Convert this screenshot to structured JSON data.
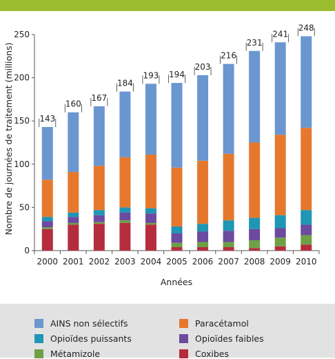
{
  "chart_data": {
    "type": "bar",
    "stacked": true,
    "categories": [
      "2000",
      "2001",
      "2002",
      "2003",
      "2004",
      "2005",
      "2006",
      "2007",
      "2008",
      "2009",
      "2010"
    ],
    "totals": [
      143,
      160,
      167,
      184,
      193,
      194,
      203,
      216,
      231,
      241,
      248
    ],
    "series": [
      {
        "name": "Coxibes",
        "color": "#b52d3d",
        "values": [
          25,
          30,
          31,
          32,
          30,
          4,
          4,
          4,
          3,
          5,
          7
        ]
      },
      {
        "name": "Métamizole",
        "color": "#6ea046",
        "values": [
          2,
          2,
          2,
          3,
          2,
          5,
          6,
          6,
          9,
          10,
          11
        ]
      },
      {
        "name": "Opioïdes faibles",
        "color": "#6b4aa0",
        "values": [
          7,
          7,
          8,
          9,
          11,
          11,
          12,
          13,
          13,
          11,
          12
        ]
      },
      {
        "name": "Opioïdes puissants",
        "color": "#1f96b3",
        "values": [
          5,
          5,
          6,
          6,
          6,
          8,
          9,
          12,
          13,
          15,
          17
        ]
      },
      {
        "name": "Paracétamol",
        "color": "#e6782d",
        "values": [
          43,
          47,
          51,
          58,
          62,
          68,
          73,
          77,
          87,
          93,
          95
        ]
      },
      {
        "name": "AINS non sélectifs",
        "color": "#6b97d0",
        "values": [
          61,
          69,
          69,
          76,
          82,
          98,
          99,
          104,
          106,
          107,
          106
        ]
      }
    ],
    "xlabel": "Années",
    "ylabel": "Nombre de journées de traitement (millions)",
    "ylim": [
      0,
      250
    ],
    "yticks": [
      0,
      50,
      100,
      150,
      200,
      250
    ],
    "grid": false,
    "legend_position": "bottom"
  },
  "legend": {
    "items": [
      {
        "label": "AINS non sélectifs",
        "color": "#6b97d0"
      },
      {
        "label": "Paracétamol",
        "color": "#e6782d"
      },
      {
        "label": "Opioïdes puissants",
        "color": "#1f96b3"
      },
      {
        "label": "Opioïdes faibles",
        "color": "#6b4aa0"
      },
      {
        "label": "Métamizole",
        "color": "#6ea046"
      },
      {
        "label": "Coxibes",
        "color": "#b52d3d"
      }
    ]
  },
  "colors": {
    "header_bar": "#9cbc30",
    "legend_background": "#e2e2e2"
  }
}
